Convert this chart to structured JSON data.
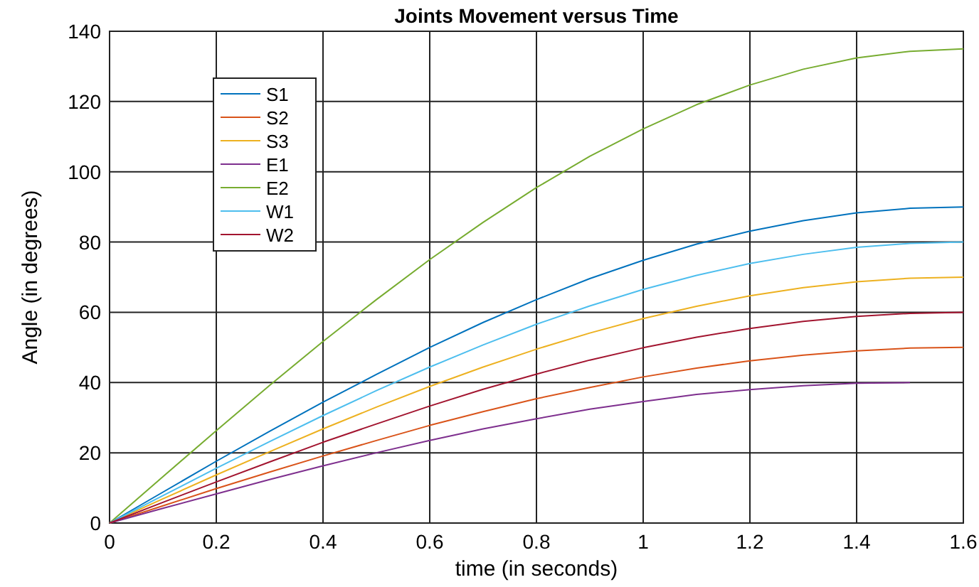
{
  "chart_data": {
    "type": "line",
    "title": "Joints Movement versus Time",
    "xlabel": "time (in seconds)",
    "ylabel": "Angle (in degrees)",
    "x": [
      0,
      0.1,
      0.2,
      0.3,
      0.4,
      0.5,
      0.6,
      0.7,
      0.8,
      0.9,
      1.0,
      1.1,
      1.2,
      1.3,
      1.4,
      1.5,
      1.6
    ],
    "series": [
      {
        "name": "S1",
        "color": "#0072bd",
        "values": [
          0,
          8.8,
          17.6,
          26.1,
          34.4,
          42.3,
          50.0,
          57.1,
          63.6,
          69.6,
          74.8,
          79.4,
          83.1,
          86.1,
          88.3,
          89.6,
          90
        ]
      },
      {
        "name": "S2",
        "color": "#d95319",
        "values": [
          0,
          4.9,
          9.8,
          14.5,
          19.1,
          23.5,
          27.8,
          31.7,
          35.4,
          38.6,
          41.6,
          44.1,
          46.2,
          47.8,
          49.0,
          49.8,
          50
        ]
      },
      {
        "name": "S3",
        "color": "#edb120",
        "values": [
          0,
          6.9,
          13.7,
          20.3,
          26.8,
          33.0,
          38.9,
          44.4,
          49.5,
          54.1,
          58.2,
          61.7,
          64.7,
          67.0,
          68.7,
          69.7,
          70
        ]
      },
      {
        "name": "E1",
        "color": "#7e2f8e",
        "x": [
          0,
          0.1,
          0.2,
          0.3,
          0.4,
          0.5,
          0.6,
          0.7,
          0.8,
          0.9,
          1.0,
          1.1,
          1.2,
          1.3,
          1.4,
          1.5
        ],
        "values": [
          0,
          4.2,
          8.3,
          12.4,
          16.3,
          20,
          23.5,
          26.8,
          29.7,
          32.4,
          34.6,
          36.6,
          38.0,
          39.1,
          39.8,
          40
        ]
      },
      {
        "name": "E2",
        "color": "#77ac30",
        "values": [
          0,
          13.2,
          26.3,
          39.2,
          51.7,
          63.6,
          75.0,
          85.6,
          95.5,
          104.4,
          112.2,
          119.1,
          124.7,
          129.2,
          132.4,
          134.3,
          135
        ]
      },
      {
        "name": "W1",
        "color": "#4dbeee",
        "values": [
          0,
          7.8,
          15.6,
          23.2,
          30.6,
          37.7,
          44.4,
          50.7,
          56.6,
          61.8,
          66.5,
          70.5,
          73.9,
          76.5,
          78.5,
          79.6,
          80
        ]
      },
      {
        "name": "W2",
        "color": "#a2142f",
        "values": [
          0,
          5.9,
          11.7,
          17.4,
          23.0,
          28.2,
          33.3,
          38.1,
          42.4,
          46.4,
          49.9,
          52.9,
          55.4,
          57.4,
          58.8,
          59.7,
          60
        ]
      }
    ],
    "xlim": [
      0,
      1.6
    ],
    "xticks": [
      0,
      {
        "value": 0.2,
        "label": "0.2"
      },
      {
        "value": 0.4,
        "label": "0.4"
      },
      {
        "value": 0.6,
        "label": "0.6"
      },
      {
        "value": 0.8,
        "label": "0.8"
      },
      1,
      {
        "value": 1.2,
        "label": "1.2"
      },
      {
        "value": 1.4,
        "label": "1.4"
      },
      {
        "value": 1.6,
        "label": "1.6"
      }
    ],
    "ylim": [
      0,
      140
    ],
    "yticks": [
      0,
      20,
      40,
      60,
      80,
      100,
      120,
      140
    ],
    "grid": true,
    "legend": "top left",
    "marker": "none",
    "line_style": "solid"
  }
}
